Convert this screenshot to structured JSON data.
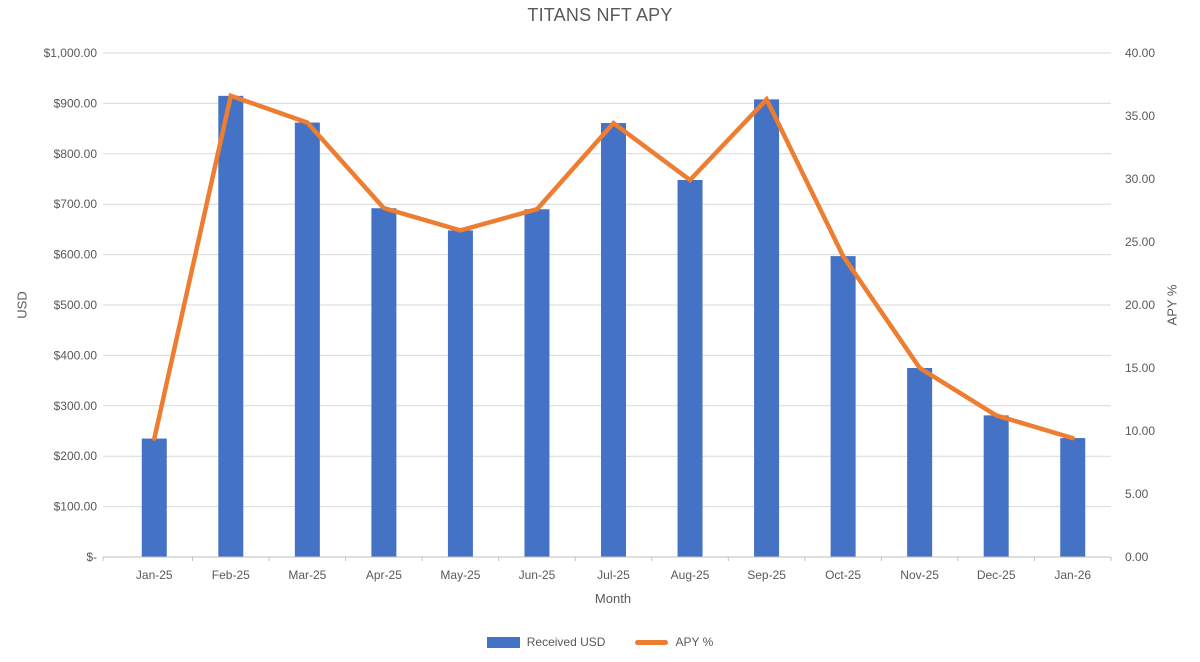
{
  "title": "TITANS NFT APY",
  "chart_data": {
    "type": "combo",
    "categories": [
      "Jan-25",
      "Feb-25",
      "Mar-25",
      "Apr-25",
      "May-25",
      "Jun-25",
      "Jul-25",
      "Aug-25",
      "Sep-25",
      "Oct-25",
      "Nov-25",
      "Dec-25",
      "Jan-26"
    ],
    "series": [
      {
        "name": "Received USD",
        "type": "bar",
        "axis": "left",
        "color": "#4472C4",
        "values": [
          235,
          915,
          862,
          692,
          648,
          690,
          861,
          748,
          908,
          597,
          375,
          281,
          236
        ]
      },
      {
        "name": "APY %",
        "type": "line",
        "axis": "right",
        "color": "#ED7D31",
        "values": [
          9.4,
          36.6,
          34.48,
          27.68,
          25.92,
          27.6,
          34.44,
          29.92,
          36.32,
          23.88,
          15.0,
          11.24,
          9.44
        ]
      }
    ],
    "left_axis": {
      "title": "USD",
      "min": 0,
      "max": 1000,
      "tick_step": 100,
      "tick_labels": [
        "$-",
        "$100.00",
        "$200.00",
        "$300.00",
        "$400.00",
        "$500.00",
        "$600.00",
        "$700.00",
        "$800.00",
        "$900.00",
        "$1,000.00"
      ]
    },
    "right_axis": {
      "title": "APY %",
      "min": 0,
      "max": 40,
      "tick_step": 5,
      "tick_labels": [
        "0.00",
        "5.00",
        "10.00",
        "15.00",
        "20.00",
        "25.00",
        "30.00",
        "35.00",
        "40.00"
      ]
    },
    "x_axis": {
      "title": "Month"
    },
    "legend": {
      "position": "bottom",
      "entries": [
        "Received USD",
        "APY %"
      ]
    },
    "grid": true
  },
  "colors": {
    "bar": "#4472C4",
    "line": "#ED7D31",
    "text": "#595959",
    "gridline": "#D9D9D9",
    "axis_line": "#BFBFBF"
  }
}
